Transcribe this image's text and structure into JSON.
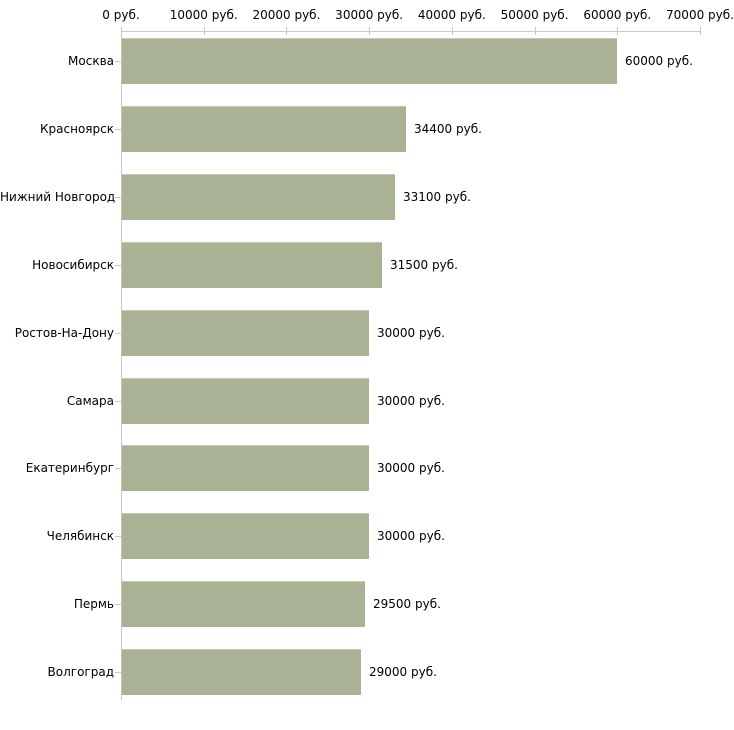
{
  "chart_data": {
    "type": "bar",
    "orientation": "horizontal",
    "title": "",
    "xlabel": "",
    "ylabel": "",
    "unit": "руб.",
    "xlim": [
      0,
      70000
    ],
    "grid": false,
    "legend": false,
    "x_ticks": [
      {
        "value": 0,
        "label": "0 руб."
      },
      {
        "value": 10000,
        "label": "10000 руб."
      },
      {
        "value": 20000,
        "label": "20000 руб."
      },
      {
        "value": 30000,
        "label": "30000 руб."
      },
      {
        "value": 40000,
        "label": "40000 руб."
      },
      {
        "value": 50000,
        "label": "50000 руб."
      },
      {
        "value": 60000,
        "label": "60000 руб."
      },
      {
        "value": 70000,
        "label": "70000 руб."
      }
    ],
    "categories": [
      "Москва",
      "Красноярск",
      "Нижний Новгород",
      "Новосибирск",
      "Ростов-На-Дону",
      "Самара",
      "Екатеринбург",
      "Челябинск",
      "Пермь",
      "Волгоград"
    ],
    "values": [
      60000,
      34400,
      33100,
      31500,
      30000,
      30000,
      30000,
      30000,
      29500,
      29000
    ],
    "bars": [
      {
        "city": "Москва",
        "value": 60000,
        "label": "60000 руб."
      },
      {
        "city": "Красноярск",
        "value": 34400,
        "label": "34400 руб."
      },
      {
        "city": "Нижний Новгород",
        "value": 33100,
        "label": "33100 руб."
      },
      {
        "city": "Новосибирск",
        "value": 31500,
        "label": "31500 руб."
      },
      {
        "city": "Ростов-На-Дону",
        "value": 30000,
        "label": "30000 руб."
      },
      {
        "city": "Самара",
        "value": 30000,
        "label": "30000 руб."
      },
      {
        "city": "Екатеринбург",
        "value": 30000,
        "label": "30000 руб."
      },
      {
        "city": "Челябинск",
        "value": 30000,
        "label": "30000 руб."
      },
      {
        "city": "Пермь",
        "value": 29500,
        "label": "29500 руб."
      },
      {
        "city": "Волгоград",
        "value": 29000,
        "label": "29000 руб."
      }
    ],
    "colors": {
      "bar_fill": "#a9b294",
      "bar_edge_highlight": "#c3c9ae",
      "axis_line": "#c9c9c9",
      "tick_mark": "#cccc99",
      "text": "#000000",
      "background": "#ffffff"
    }
  }
}
